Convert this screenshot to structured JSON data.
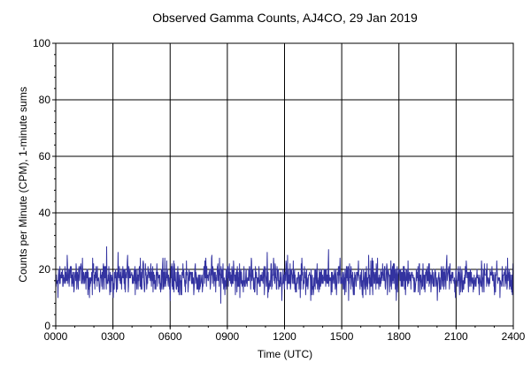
{
  "chart_data": {
    "type": "line",
    "title": "Observed Gamma Counts, AJ4CO, 29 Jan 2019",
    "xlabel": "Time (UTC)",
    "ylabel": "Counts per Minute (CPM), 1-minute sums",
    "x_ticks": [
      "0000",
      "0300",
      "0600",
      "0900",
      "1200",
      "1500",
      "1800",
      "2100",
      "2400"
    ],
    "y_ticks": [
      "0",
      "20",
      "40",
      "60",
      "80",
      "100"
    ],
    "xlim": [
      0,
      1440
    ],
    "ylim": [
      0,
      100
    ],
    "grid": true,
    "reference_lines": [
      {
        "y": 20
      }
    ],
    "series": [
      {
        "x_unit": "minutes after 0000 UTC",
        "samples_per_minute": 1,
        "baseline_cpm": 17,
        "values_min": 5,
        "values_max": 33,
        "values": []
      }
    ]
  },
  "colors": {
    "series_line": "#3333a0",
    "grid": "#000000",
    "axis": "#000000",
    "background": "#ffffff"
  }
}
